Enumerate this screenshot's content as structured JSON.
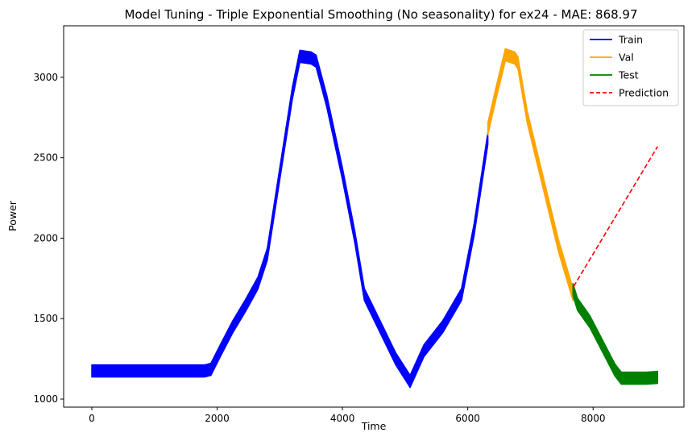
{
  "chart_data": {
    "type": "line",
    "title": "Model Tuning - Triple Exponential Smoothing (No seasonality) for ex24 - MAE: 868.97",
    "xlabel": "Time",
    "ylabel": "Power",
    "xlim": [
      -450,
      9450
    ],
    "ylim": [
      950,
      3320
    ],
    "x_ticks": [
      0,
      2000,
      4000,
      6000,
      8000
    ],
    "x_tick_labels": [
      "0",
      "2000",
      "4000",
      "6000",
      "8000"
    ],
    "y_ticks": [
      1000,
      1500,
      2000,
      2500,
      3000
    ],
    "y_tick_labels": [
      "1000",
      "1500",
      "2000",
      "2500",
      "3000"
    ],
    "grid": false,
    "legend_position": "top-right",
    "series": [
      {
        "name": "Train",
        "color": "#0000ff",
        "style": "solid",
        "band_width": 75,
        "x": [
          0,
          1800,
          1900,
          2050,
          2250,
          2450,
          2650,
          2800,
          3000,
          3200,
          3320,
          3500,
          3580,
          3750,
          4000,
          4200,
          4350,
          4600,
          4850,
          5080,
          5300,
          5600,
          5900,
          6100,
          6320
        ],
        "y": [
          1175,
          1175,
          1185,
          1300,
          1450,
          1580,
          1720,
          1900,
          2400,
          2900,
          3130,
          3120,
          3100,
          2850,
          2400,
          2000,
          1650,
          1450,
          1250,
          1110,
          1300,
          1450,
          1650,
          2050,
          2620
        ]
      },
      {
        "name": "Val",
        "color": "#ffa500",
        "style": "solid",
        "band_width": 75,
        "x": [
          6320,
          6450,
          6600,
          6750,
          6800,
          6950,
          7200,
          7450,
          7680
        ],
        "y": [
          2680,
          2900,
          3140,
          3120,
          3090,
          2750,
          2350,
          1950,
          1650
        ]
      },
      {
        "name": "Test",
        "color": "#008000",
        "style": "solid",
        "band_width": 75,
        "x": [
          7680,
          7750,
          7950,
          8150,
          8350,
          8450,
          8650,
          8850,
          9030
        ],
        "y": [
          1680,
          1590,
          1480,
          1330,
          1180,
          1130,
          1130,
          1130,
          1135
        ]
      },
      {
        "name": "Prediction",
        "color": "#ff0000",
        "style": "dashed",
        "band_width": 0,
        "x": [
          7690,
          9030
        ],
        "y": [
          1700,
          2570
        ]
      }
    ]
  }
}
